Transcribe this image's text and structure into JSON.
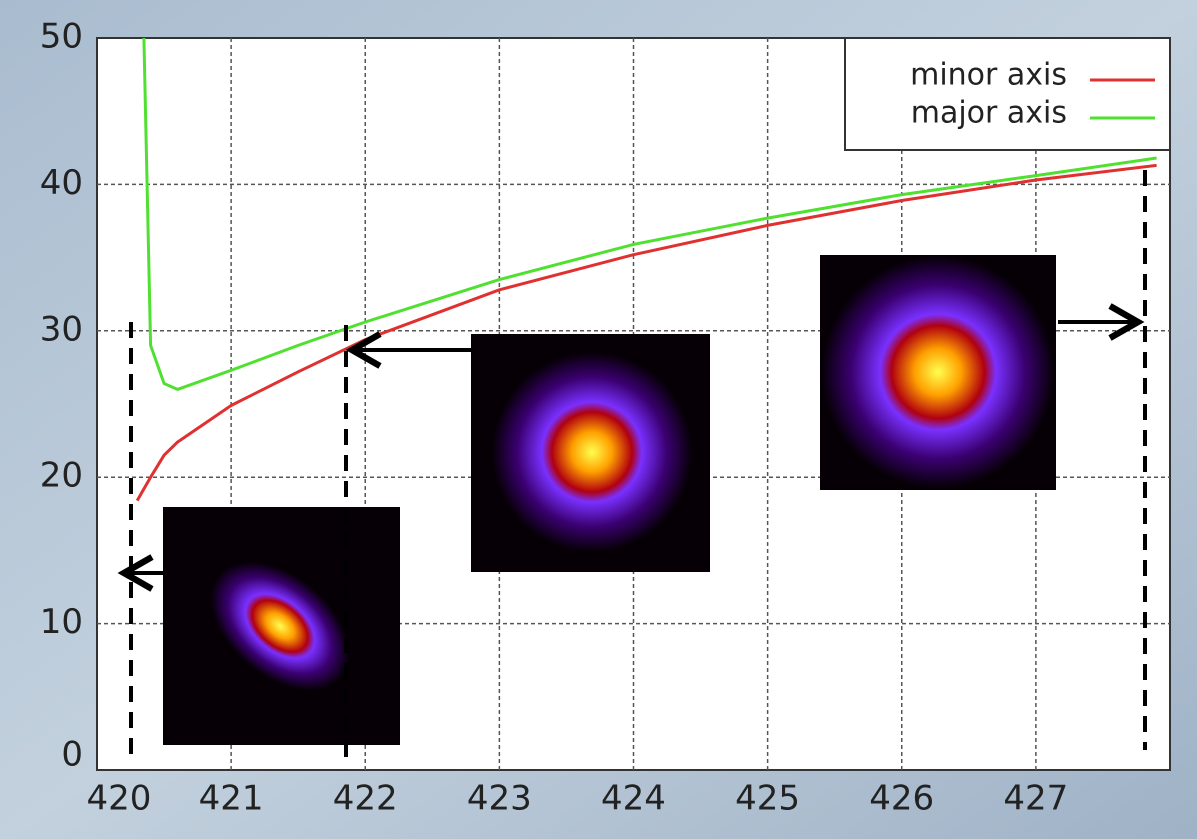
{
  "chart_data": {
    "type": "line",
    "x": [
      420.3,
      420.35,
      420.4,
      420.5,
      420.6,
      421,
      421.5,
      422,
      423,
      424,
      425,
      426,
      427,
      427.9
    ],
    "series": [
      {
        "name": "minor axis",
        "color": "#e03030",
        "values": [
          18.4,
          19.2,
          20.0,
          21.5,
          22.4,
          24.9,
          27.2,
          29.4,
          32.8,
          35.2,
          37.2,
          38.9,
          40.3,
          41.3
        ]
      },
      {
        "name": "major axis",
        "color": "#50e030",
        "values": [
          null,
          50,
          29.0,
          26.4,
          26.0,
          27.3,
          29.0,
          30.6,
          33.5,
          35.9,
          37.7,
          39.3,
          40.6,
          41.8
        ]
      }
    ],
    "xlim": [
      420,
      428
    ],
    "xticks": [
      420,
      421,
      422,
      423,
      424,
      425,
      426,
      427
    ],
    "ylim": [
      0,
      50
    ],
    "yticks": [
      0,
      10,
      20,
      30,
      40,
      50
    ],
    "grid": true,
    "legend": "upper right"
  }
}
